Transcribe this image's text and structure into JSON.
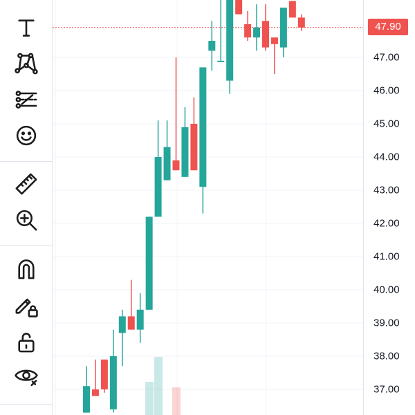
{
  "toolbar": {
    "tools": [
      {
        "name": "text-tool-icon"
      },
      {
        "name": "pattern-tool-icon"
      },
      {
        "name": "prediction-tool-icon"
      },
      {
        "name": "emoji-icon"
      },
      {
        "name": "ruler-icon"
      },
      {
        "name": "zoom-in-icon"
      },
      {
        "name": "magnet-icon"
      },
      {
        "name": "lock-drawing-icon"
      },
      {
        "name": "unlock-icon"
      },
      {
        "name": "eye-icon"
      }
    ]
  },
  "price_axis": {
    "current_price": "47.90",
    "ticks": [
      "47.00",
      "46.00",
      "45.00",
      "44.00",
      "43.00",
      "42.00",
      "41.00",
      "40.00",
      "39.00",
      "38.00",
      "37.00"
    ]
  },
  "colors": {
    "up": "#26a69a",
    "down": "#ef5350",
    "grid": "#f0f3fa"
  },
  "chart_data": {
    "type": "candlestick",
    "ylim": [
      36.35,
      48.7
    ],
    "candles": [
      {
        "o": 36.3,
        "h": 37.7,
        "l": 36.3,
        "c": 37.1
      },
      {
        "o": 37.0,
        "h": 37.9,
        "l": 36.8,
        "c": 36.8
      },
      {
        "o": 37.9,
        "h": 37.9,
        "l": 36.9,
        "c": 37.0
      },
      {
        "o": 36.4,
        "h": 38.8,
        "l": 36.3,
        "c": 38.0
      },
      {
        "o": 38.7,
        "h": 39.4,
        "l": 37.7,
        "c": 39.2
      },
      {
        "o": 39.2,
        "h": 40.3,
        "l": 38.8,
        "c": 38.8
      },
      {
        "o": 38.8,
        "h": 39.9,
        "l": 38.4,
        "c": 39.4
      },
      {
        "o": 39.4,
        "h": 42.2,
        "l": 39.4,
        "c": 42.2
      },
      {
        "o": 42.2,
        "h": 45.1,
        "l": 42.2,
        "c": 44.0
      },
      {
        "o": 43.3,
        "h": 45.1,
        "l": 43.3,
        "c": 44.3
      },
      {
        "o": 43.9,
        "h": 47.0,
        "l": 43.6,
        "c": 43.6
      },
      {
        "o": 43.4,
        "h": 45.5,
        "l": 43.4,
        "c": 44.9
      },
      {
        "o": 45.0,
        "h": 45.8,
        "l": 43.6,
        "c": 43.6
      },
      {
        "o": 43.1,
        "h": 46.7,
        "l": 42.3,
        "c": 46.7
      },
      {
        "o": 47.2,
        "h": 48.1,
        "l": 46.6,
        "c": 47.5
      },
      {
        "o": 46.9,
        "h": 48.9,
        "l": 46.9,
        "c": 46.9
      },
      {
        "o": 46.3,
        "h": 48.8,
        "l": 45.9,
        "c": 48.8
      },
      {
        "o": 48.8,
        "h": 48.8,
        "l": 48.3,
        "c": 48.3
      },
      {
        "o": 48.0,
        "h": 48.4,
        "l": 47.5,
        "c": 47.6
      },
      {
        "o": 47.6,
        "h": 48.6,
        "l": 47.2,
        "c": 47.9
      },
      {
        "o": 48.1,
        "h": 48.6,
        "l": 47.2,
        "c": 47.3
      },
      {
        "o": 47.6,
        "h": 47.6,
        "l": 46.5,
        "c": 47.4
      },
      {
        "o": 47.3,
        "h": 48.5,
        "l": 47.0,
        "c": 48.5
      },
      {
        "o": 48.7,
        "h": 48.7,
        "l": 48.2,
        "c": 48.2
      },
      {
        "o": 48.2,
        "h": 48.3,
        "l": 47.8,
        "c": 47.9
      }
    ]
  }
}
